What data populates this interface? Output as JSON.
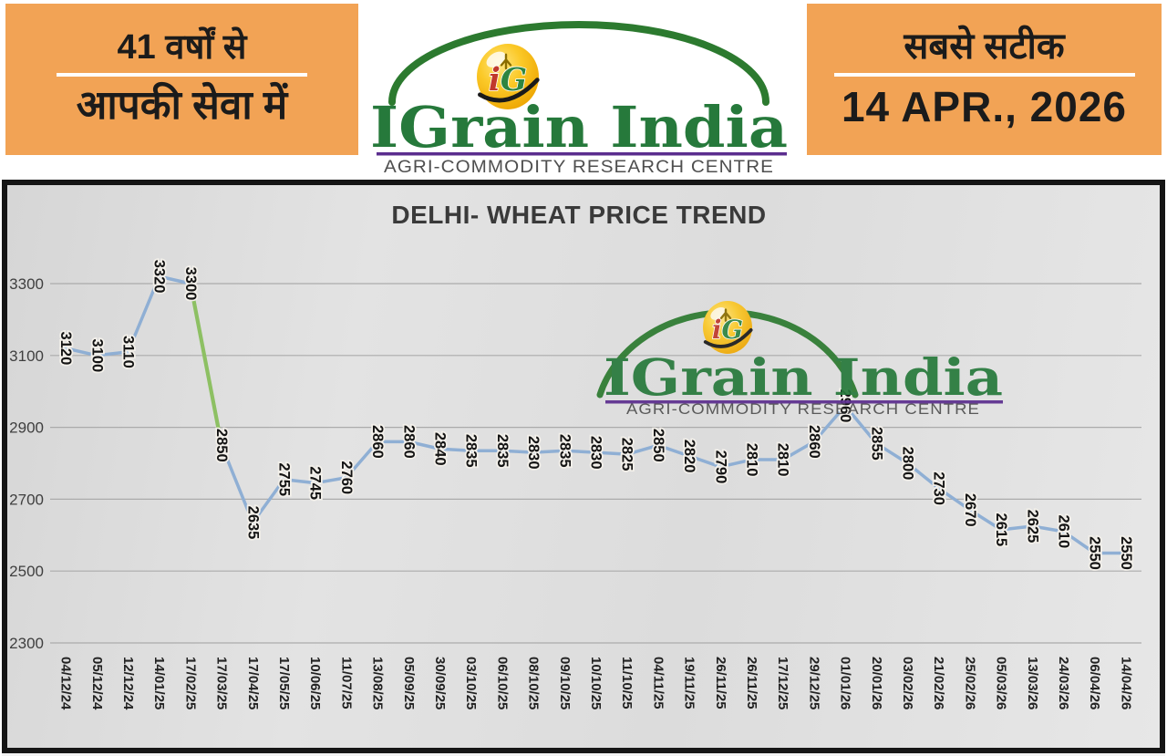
{
  "header": {
    "left_panel": {
      "line1": "41 वर्षों से",
      "line2": "आपकी सेवा में",
      "bg_color": "#F2A355"
    },
    "right_panel": {
      "line1": "सबसे सटीक",
      "date": "14 APR., 2026",
      "bg_color": "#F2A355"
    },
    "logo": {
      "name": "IGrain India",
      "subtitle": "AGRI-COMMODITY RESEARCH CENTRE",
      "badge_text": "iG",
      "name_color": "#26793B",
      "underline_color": "#5B2D8E",
      "subtitle_color": "#4F4F4F",
      "arc_color": "#2C7A2F",
      "badge_gold": "#F5B301"
    }
  },
  "chart_data": {
    "type": "line",
    "title": "DELHI- WHEAT PRICE TREND",
    "x": [
      "04/12/24",
      "05/12/24",
      "12/12/24",
      "14/01/25",
      "17/02/25",
      "17/03/25",
      "17/04/25",
      "17/05/25",
      "10/06/25",
      "11/07/25",
      "13/08/25",
      "05/09/25",
      "30/09/25",
      "03/10/25",
      "06/10/25",
      "08/10/25",
      "09/10/25",
      "10/10/25",
      "11/10/25",
      "04/11/25",
      "19/11/25",
      "26/11/25",
      "26/11/25",
      "17/12/25",
      "29/12/25",
      "01/01/26",
      "20/01/26",
      "03/02/26",
      "21/02/26",
      "25/02/26",
      "05/03/26",
      "13/03/26",
      "24/03/26",
      "06/04/26",
      "14/04/26"
    ],
    "series": [
      {
        "name": "Delhi Wheat Price",
        "values": [
          3120,
          3100,
          3110,
          3320,
          3300,
          2850,
          2635,
          2755,
          2745,
          2760,
          2860,
          2860,
          2840,
          2835,
          2835,
          2830,
          2835,
          2830,
          2825,
          2850,
          2820,
          2790,
          2810,
          2810,
          2860,
          2960,
          2855,
          2800,
          2730,
          2670,
          2615,
          2625,
          2610,
          2550,
          2550
        ]
      }
    ],
    "yticks": [
      3300,
      3100,
      2900,
      2700,
      2500,
      2300
    ],
    "ylim": [
      2300,
      3400
    ],
    "grid": true,
    "legend": "none",
    "data_labels": true,
    "label_rotation_deg": 90,
    "line_color": "#8FAFD4",
    "marker_color": "#BDD2E8",
    "gridline_color": "#ABABAB",
    "highlight_segment": {
      "from_index": 4,
      "to_index": 5,
      "color": "#8DC063"
    },
    "plot_bg": "#DEDEDE"
  }
}
